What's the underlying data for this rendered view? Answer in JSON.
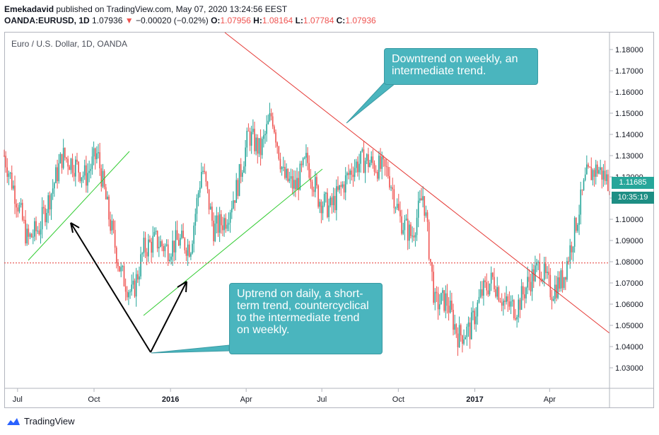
{
  "header": {
    "author": "Emekadavid",
    "published_text": " published on TradingView.com, May 07, 2020 13:24:56 EEST"
  },
  "ohlc": {
    "symbol": "OANDA:EURUSD, 1D",
    "last": "1.07936",
    "change": "−0.00020 (−0.02%)",
    "open_label": "O:",
    "open": "1.07956",
    "high_label": "H:",
    "high": "1.08164",
    "low_label": "L:",
    "low": "1.07784",
    "close_label": "C:",
    "close": "1.07936"
  },
  "chart_title": "Euro / U.S. Dollar, 1D, OANDA",
  "callouts": {
    "downtrend": "Downtrend on weekly, an intermediate trend.",
    "uptrend": "Uptrend on daily, a short-term trend, countercyclical to the intermediate trend on weekly."
  },
  "price_tag": {
    "price": "1.11685",
    "countdown": "10:35:19"
  },
  "logo_text": "TradingView",
  "colors": {
    "up": "#26a69a",
    "down": "#ef5350",
    "downtrend_line": "#e53935",
    "uptrend_line": "#33cc33",
    "callout": "#4ab5be",
    "dotted": "#e53935"
  },
  "chart_data": {
    "type": "candlestick",
    "title": "Euro / U.S. Dollar, 1D, OANDA",
    "x_ticks": [
      "Jul",
      "Oct",
      "2016",
      "Apr",
      "Jul",
      "Oct",
      "2017",
      "Apr"
    ],
    "y_ticks": [
      "1.18000",
      "1.17000",
      "1.16000",
      "1.15000",
      "1.14000",
      "1.13000",
      "1.12000",
      "1.11000",
      "1.10000",
      "1.09000",
      "1.08000",
      "1.07000",
      "1.06000",
      "1.05000",
      "1.04000",
      "1.03000"
    ],
    "ylim": [
      1.026,
      1.186
    ],
    "close_series": [
      [
        "2015-06-15",
        1.13
      ],
      [
        "2015-06-29",
        1.111
      ],
      [
        "2015-07-13",
        1.09
      ],
      [
        "2015-07-27",
        1.096
      ],
      [
        "2015-08-10",
        1.112
      ],
      [
        "2015-08-24",
        1.13
      ],
      [
        "2015-09-07",
        1.126
      ],
      [
        "2015-09-21",
        1.12
      ],
      [
        "2015-10-05",
        1.131
      ],
      [
        "2015-10-19",
        1.101
      ],
      [
        "2015-11-02",
        1.075
      ],
      [
        "2015-11-16",
        1.064
      ],
      [
        "2015-11-30",
        1.086
      ],
      [
        "2015-12-14",
        1.09
      ],
      [
        "2015-12-28",
        1.086
      ],
      [
        "2016-01-11",
        1.09
      ],
      [
        "2016-01-25",
        1.087
      ],
      [
        "2016-02-08",
        1.125
      ],
      [
        "2016-02-22",
        1.095
      ],
      [
        "2016-03-07",
        1.1
      ],
      [
        "2016-03-21",
        1.115
      ],
      [
        "2016-04-04",
        1.14
      ],
      [
        "2016-04-18",
        1.132
      ],
      [
        "2016-05-02",
        1.15
      ],
      [
        "2016-05-16",
        1.12
      ],
      [
        "2016-05-30",
        1.115
      ],
      [
        "2016-06-13",
        1.128
      ],
      [
        "2016-06-27",
        1.11
      ],
      [
        "2016-07-11",
        1.105
      ],
      [
        "2016-07-25",
        1.115
      ],
      [
        "2016-08-08",
        1.125
      ],
      [
        "2016-08-22",
        1.128
      ],
      [
        "2016-09-05",
        1.125
      ],
      [
        "2016-09-19",
        1.122
      ],
      [
        "2016-10-03",
        1.1
      ],
      [
        "2016-10-17",
        1.092
      ],
      [
        "2016-10-31",
        1.112
      ],
      [
        "2016-11-14",
        1.06
      ],
      [
        "2016-11-28",
        1.062
      ],
      [
        "2016-12-12",
        1.045
      ],
      [
        "2016-12-26",
        1.048
      ],
      [
        "2017-01-09",
        1.065
      ],
      [
        "2017-01-23",
        1.072
      ],
      [
        "2017-02-06",
        1.06
      ],
      [
        "2017-02-20",
        1.058
      ],
      [
        "2017-03-06",
        1.07
      ],
      [
        "2017-03-20",
        1.078
      ],
      [
        "2017-04-03",
        1.066
      ],
      [
        "2017-04-17",
        1.072
      ],
      [
        "2017-05-01",
        1.095
      ],
      [
        "2017-05-15",
        1.12
      ],
      [
        "2017-05-29",
        1.124
      ],
      [
        "2017-06-12",
        1.117
      ]
    ],
    "high": 1.171,
    "low": 1.034,
    "last_price": 1.11685,
    "reference_level": 1.0794
  }
}
